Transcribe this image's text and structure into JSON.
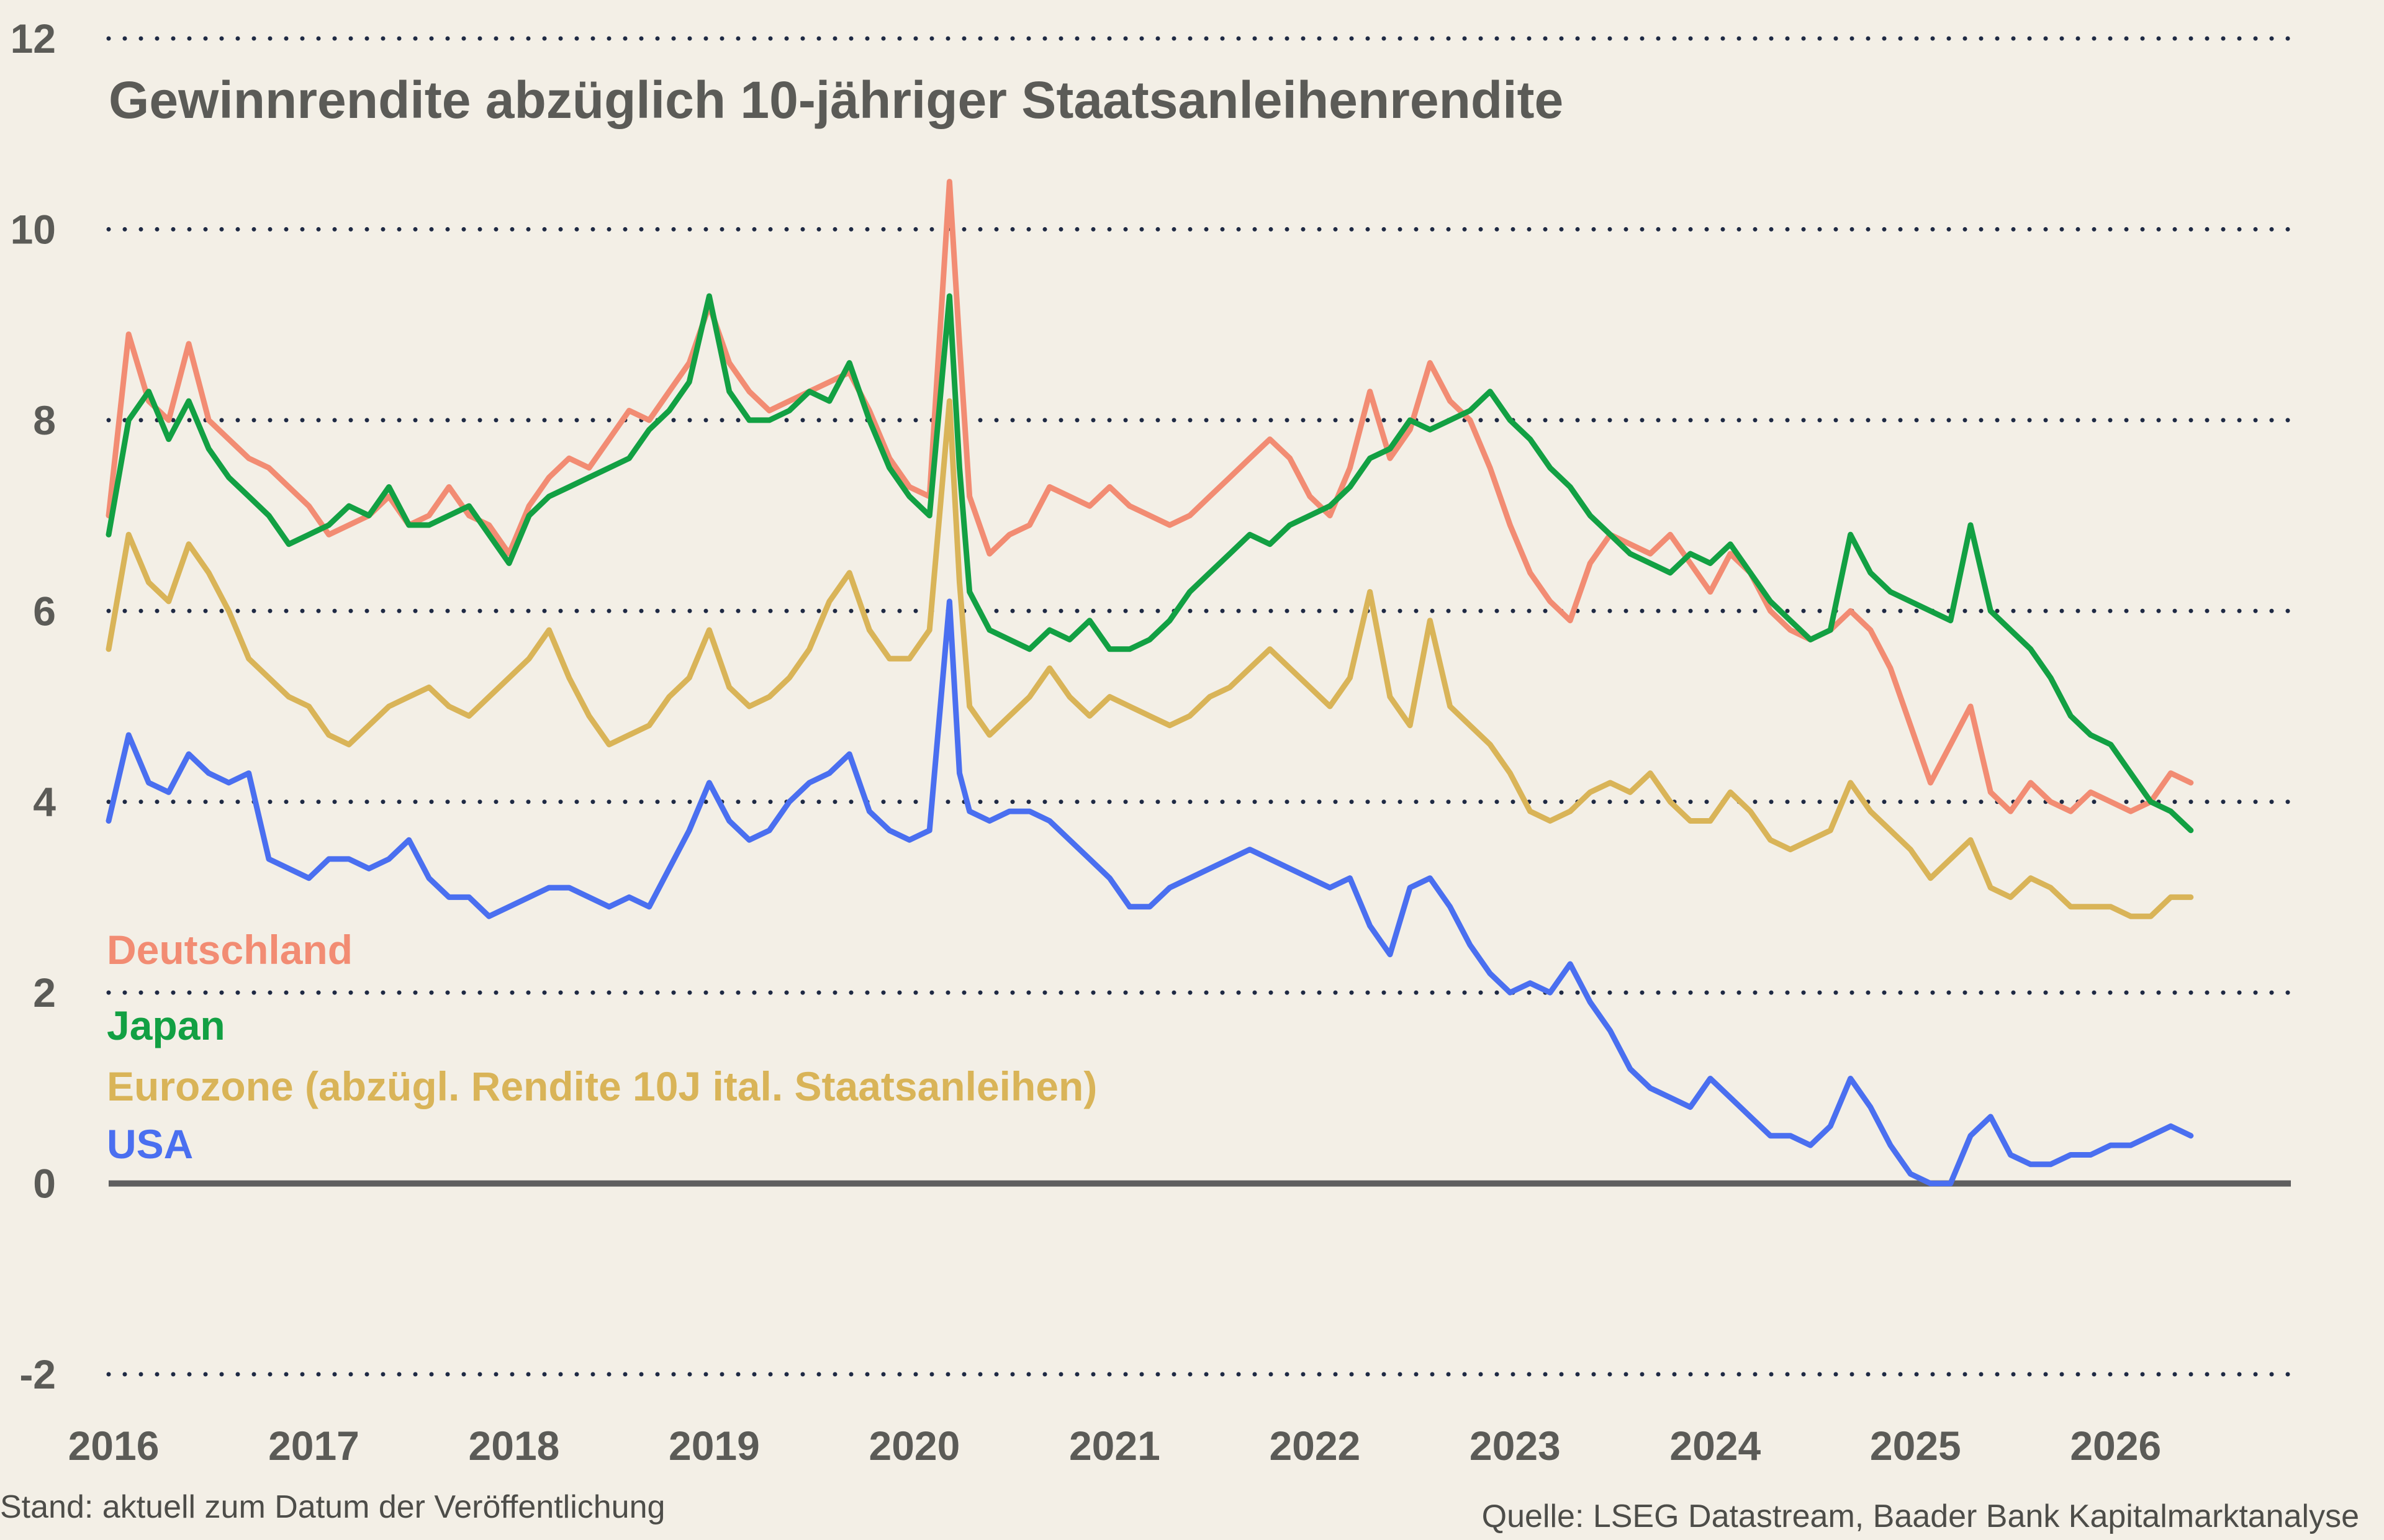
{
  "colors": {
    "background": "#f3efe6",
    "text": "#5b5b57",
    "grid": "#1f2a44",
    "zero_line": "#5f5f5f",
    "deutschland": "#f28c73",
    "japan": "#12a043",
    "eurozone": "#d9b458",
    "usa": "#4a6ff0"
  },
  "footer": {
    "stand": "Stand: aktuell zum Datum der Veröffentlichung",
    "source": "Quelle: LSEG Datastream, Baader Bank Kapitalmarktanalyse"
  },
  "chart_data": {
    "type": "line",
    "title": "Gewinnrendite abzüglich 10-jähriger Staatsanleihenrendite",
    "xlabel": "",
    "ylabel": "",
    "xlim": [
      2016,
      2026.9
    ],
    "ylim": [
      -2,
      12
    ],
    "x_ticks": [
      "2016",
      "2017",
      "2018",
      "2019",
      "2020",
      "2021",
      "2022",
      "2023",
      "2024",
      "2025",
      "2026"
    ],
    "y_ticks": [
      "-2",
      "0",
      "2",
      "4",
      "6",
      "8",
      "10",
      "12"
    ],
    "grid": "horizontal dotted",
    "legend_position": "left, stacked text labels",
    "x": [
      2016.0,
      2016.1,
      2016.2,
      2016.3,
      2016.4,
      2016.5,
      2016.6,
      2016.7,
      2016.8,
      2016.9,
      2017.0,
      2017.1,
      2017.2,
      2017.3,
      2017.4,
      2017.5,
      2017.6,
      2017.7,
      2017.8,
      2017.9,
      2018.0,
      2018.1,
      2018.2,
      2018.3,
      2018.4,
      2018.5,
      2018.6,
      2018.7,
      2018.8,
      2018.9,
      2019.0,
      2019.1,
      2019.2,
      2019.3,
      2019.4,
      2019.5,
      2019.6,
      2019.7,
      2019.8,
      2019.9,
      2020.0,
      2020.1,
      2020.2,
      2020.25,
      2020.3,
      2020.4,
      2020.5,
      2020.6,
      2020.7,
      2020.8,
      2020.9,
      2021.0,
      2021.1,
      2021.2,
      2021.3,
      2021.4,
      2021.5,
      2021.6,
      2021.7,
      2021.8,
      2021.9,
      2022.0,
      2022.1,
      2022.2,
      2022.3,
      2022.4,
      2022.5,
      2022.6,
      2022.7,
      2022.8,
      2022.9,
      2023.0,
      2023.1,
      2023.2,
      2023.3,
      2023.4,
      2023.5,
      2023.6,
      2023.7,
      2023.8,
      2023.9,
      2024.0,
      2024.1,
      2024.2,
      2024.3,
      2024.4,
      2024.5,
      2024.6,
      2024.7,
      2024.8,
      2024.9,
      2025.0,
      2025.1,
      2025.2,
      2025.3,
      2025.4,
      2025.5,
      2025.6,
      2025.7,
      2025.8,
      2025.9,
      2026.0,
      2026.1,
      2026.2,
      2026.3,
      2026.4
    ],
    "series": [
      {
        "name": "Deutschland",
        "values": [
          7.0,
          8.9,
          8.2,
          8.0,
          8.8,
          8.0,
          7.8,
          7.6,
          7.5,
          7.3,
          7.1,
          6.8,
          6.9,
          7.0,
          7.2,
          6.9,
          7.0,
          7.3,
          7.0,
          6.9,
          6.6,
          7.1,
          7.4,
          7.6,
          7.5,
          7.8,
          8.1,
          8.0,
          8.3,
          8.6,
          9.2,
          8.6,
          8.3,
          8.1,
          8.2,
          8.3,
          8.4,
          8.5,
          8.1,
          7.6,
          7.3,
          7.2,
          10.5,
          8.8,
          7.2,
          6.6,
          6.8,
          6.9,
          7.3,
          7.2,
          7.1,
          7.3,
          7.1,
          7.0,
          6.9,
          7.0,
          7.2,
          7.4,
          7.6,
          7.8,
          7.6,
          7.2,
          7.0,
          7.5,
          8.3,
          7.6,
          7.9,
          8.6,
          8.2,
          8.0,
          7.5,
          6.9,
          6.4,
          6.1,
          5.9,
          6.5,
          6.8,
          6.7,
          6.6,
          6.8,
          6.5,
          6.2,
          6.6,
          6.4,
          6.0,
          5.8,
          5.7,
          5.8,
          6.0,
          5.8,
          5.4,
          4.8,
          4.2,
          4.6,
          5.0,
          4.1,
          3.9,
          4.2,
          4.0,
          3.9,
          4.1,
          4.0,
          3.9,
          4.0,
          4.3,
          4.2
        ]
      },
      {
        "name": "Japan",
        "values": [
          6.8,
          8.0,
          8.3,
          7.8,
          8.2,
          7.7,
          7.4,
          7.2,
          7.0,
          6.7,
          6.8,
          6.9,
          7.1,
          7.0,
          7.3,
          6.9,
          6.9,
          7.0,
          7.1,
          6.8,
          6.5,
          7.0,
          7.2,
          7.3,
          7.4,
          7.5,
          7.6,
          7.9,
          8.1,
          8.4,
          9.3,
          8.3,
          8.0,
          8.0,
          8.1,
          8.3,
          8.2,
          8.6,
          8.0,
          7.5,
          7.2,
          7.0,
          9.3,
          7.5,
          6.2,
          5.8,
          5.7,
          5.6,
          5.8,
          5.7,
          5.9,
          5.6,
          5.6,
          5.7,
          5.9,
          6.2,
          6.4,
          6.6,
          6.8,
          6.7,
          6.9,
          7.0,
          7.1,
          7.3,
          7.6,
          7.7,
          8.0,
          7.9,
          8.0,
          8.1,
          8.3,
          8.0,
          7.8,
          7.5,
          7.3,
          7.0,
          6.8,
          6.6,
          6.5,
          6.4,
          6.6,
          6.5,
          6.7,
          6.4,
          6.1,
          5.9,
          5.7,
          5.8,
          6.8,
          6.4,
          6.2,
          6.1,
          6.0,
          5.9,
          6.9,
          6.0,
          5.8,
          5.6,
          5.3,
          4.9,
          4.7,
          4.6,
          4.3,
          4.0,
          3.9,
          3.7
        ]
      },
      {
        "name": "Eurozone (abzügl. Rendite 10J ital. Staatsanleihen)",
        "values": [
          5.6,
          6.8,
          6.3,
          6.1,
          6.7,
          6.4,
          6.0,
          5.5,
          5.3,
          5.1,
          5.0,
          4.7,
          4.6,
          4.8,
          5.0,
          5.1,
          5.2,
          5.0,
          4.9,
          5.1,
          5.3,
          5.5,
          5.8,
          5.3,
          4.9,
          4.6,
          4.7,
          4.8,
          5.1,
          5.3,
          5.8,
          5.2,
          5.0,
          5.1,
          5.3,
          5.6,
          6.1,
          6.4,
          5.8,
          5.5,
          5.5,
          5.8,
          8.2,
          6.3,
          5.0,
          4.7,
          4.9,
          5.1,
          5.4,
          5.1,
          4.9,
          5.1,
          5.0,
          4.9,
          4.8,
          4.9,
          5.1,
          5.2,
          5.4,
          5.6,
          5.4,
          5.2,
          5.0,
          5.3,
          6.2,
          5.1,
          4.8,
          5.9,
          5.0,
          4.8,
          4.6,
          4.3,
          3.9,
          3.8,
          3.9,
          4.1,
          4.2,
          4.1,
          4.3,
          4.0,
          3.8,
          3.8,
          4.1,
          3.9,
          3.6,
          3.5,
          3.6,
          3.7,
          4.2,
          3.9,
          3.7,
          3.5,
          3.2,
          3.4,
          3.6,
          3.1,
          3.0,
          3.2,
          3.1,
          2.9,
          2.9,
          2.9,
          2.8,
          2.8,
          3.0,
          3.0
        ]
      },
      {
        "name": "USA",
        "values": [
          3.8,
          4.7,
          4.2,
          4.1,
          4.5,
          4.3,
          4.2,
          4.3,
          3.4,
          3.3,
          3.2,
          3.4,
          3.4,
          3.3,
          3.4,
          3.6,
          3.2,
          3.0,
          3.0,
          2.8,
          2.9,
          3.0,
          3.1,
          3.1,
          3.0,
          2.9,
          3.0,
          2.9,
          3.3,
          3.7,
          4.2,
          3.8,
          3.6,
          3.7,
          4.0,
          4.2,
          4.3,
          4.5,
          3.9,
          3.7,
          3.6,
          3.7,
          6.1,
          4.3,
          3.9,
          3.8,
          3.9,
          3.9,
          3.8,
          3.6,
          3.4,
          3.2,
          2.9,
          2.9,
          3.1,
          3.2,
          3.3,
          3.4,
          3.5,
          3.4,
          3.3,
          3.2,
          3.1,
          3.2,
          2.7,
          2.4,
          3.1,
          3.2,
          2.9,
          2.5,
          2.2,
          2.0,
          2.1,
          2.0,
          2.3,
          1.9,
          1.6,
          1.2,
          1.0,
          0.9,
          0.8,
          1.1,
          0.9,
          0.7,
          0.5,
          0.5,
          0.4,
          0.6,
          1.1,
          0.8,
          0.4,
          0.1,
          0.0,
          0.0,
          0.5,
          0.7,
          0.3,
          0.2,
          0.2,
          0.3,
          0.3,
          0.4,
          0.4,
          0.5,
          0.6,
          0.5
        ]
      }
    ]
  }
}
